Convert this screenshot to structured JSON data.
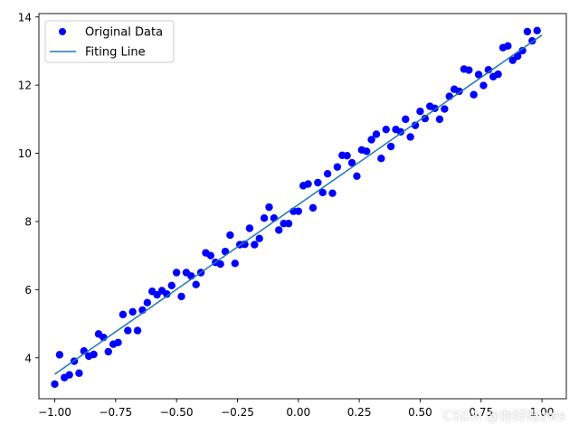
{
  "chart_data": {
    "type": "scatter",
    "title": "",
    "xlabel": "",
    "ylabel": "",
    "xlim": [
      -1.065,
      1.1
    ],
    "ylim": [
      2.8,
      14.1
    ],
    "xticks": [
      -1.0,
      -0.75,
      -0.5,
      -0.25,
      0.0,
      0.25,
      0.5,
      0.75,
      1.0
    ],
    "xtick_labels": [
      "−1.00",
      "−0.75",
      "−0.50",
      "−0.25",
      "0.00",
      "0.25",
      "0.50",
      "0.75",
      "1.00"
    ],
    "yticks": [
      4,
      6,
      8,
      10,
      12,
      14
    ],
    "ytick_labels": [
      "4",
      "6",
      "8",
      "10",
      "12",
      "14"
    ],
    "grid": false,
    "legend_position": "top-left",
    "series": [
      {
        "name": "Original Data",
        "kind": "scatter",
        "color": "#0000ff",
        "points": [
          [
            -1.0,
            3.23
          ],
          [
            -0.98,
            4.09
          ],
          [
            -0.96,
            3.42
          ],
          [
            -0.94,
            3.5
          ],
          [
            -0.92,
            3.9
          ],
          [
            -0.9,
            3.55
          ],
          [
            -0.88,
            4.2
          ],
          [
            -0.86,
            4.05
          ],
          [
            -0.84,
            4.1
          ],
          [
            -0.82,
            4.7
          ],
          [
            -0.8,
            4.6
          ],
          [
            -0.78,
            4.18
          ],
          [
            -0.76,
            4.4
          ],
          [
            -0.74,
            4.45
          ],
          [
            -0.72,
            5.27
          ],
          [
            -0.7,
            4.8
          ],
          [
            -0.68,
            5.35
          ],
          [
            -0.66,
            4.8
          ],
          [
            -0.64,
            5.4
          ],
          [
            -0.62,
            5.62
          ],
          [
            -0.6,
            5.95
          ],
          [
            -0.58,
            5.85
          ],
          [
            -0.56,
            5.97
          ],
          [
            -0.54,
            5.87
          ],
          [
            -0.52,
            6.12
          ],
          [
            -0.5,
            6.5
          ],
          [
            -0.48,
            5.8
          ],
          [
            -0.46,
            6.5
          ],
          [
            -0.44,
            6.4
          ],
          [
            -0.42,
            6.15
          ],
          [
            -0.4,
            6.5
          ],
          [
            -0.38,
            7.08
          ],
          [
            -0.36,
            7.0
          ],
          [
            -0.34,
            6.8
          ],
          [
            -0.32,
            6.75
          ],
          [
            -0.3,
            7.12
          ],
          [
            -0.28,
            7.6
          ],
          [
            -0.26,
            6.77
          ],
          [
            -0.24,
            7.32
          ],
          [
            -0.22,
            7.33
          ],
          [
            -0.2,
            7.8
          ],
          [
            -0.18,
            7.32
          ],
          [
            -0.16,
            7.5
          ],
          [
            -0.14,
            8.1
          ],
          [
            -0.12,
            8.42
          ],
          [
            -0.1,
            8.1
          ],
          [
            -0.08,
            7.75
          ],
          [
            -0.06,
            7.94
          ],
          [
            -0.04,
            7.94
          ],
          [
            -0.02,
            8.3
          ],
          [
            0.0,
            8.3
          ],
          [
            0.02,
            9.05
          ],
          [
            0.04,
            9.1
          ],
          [
            0.06,
            8.4
          ],
          [
            0.08,
            9.14
          ],
          [
            0.1,
            8.85
          ],
          [
            0.12,
            9.4
          ],
          [
            0.14,
            8.83
          ],
          [
            0.16,
            9.6
          ],
          [
            0.18,
            9.94
          ],
          [
            0.2,
            9.93
          ],
          [
            0.22,
            9.72
          ],
          [
            0.24,
            9.33
          ],
          [
            0.26,
            10.1
          ],
          [
            0.28,
            10.06
          ],
          [
            0.3,
            10.4
          ],
          [
            0.32,
            10.56
          ],
          [
            0.34,
            9.85
          ],
          [
            0.36,
            10.7
          ],
          [
            0.38,
            10.2
          ],
          [
            0.4,
            10.7
          ],
          [
            0.42,
            10.63
          ],
          [
            0.44,
            11.0
          ],
          [
            0.46,
            10.48
          ],
          [
            0.48,
            10.82
          ],
          [
            0.5,
            11.23
          ],
          [
            0.52,
            11.02
          ],
          [
            0.54,
            11.38
          ],
          [
            0.56,
            11.32
          ],
          [
            0.58,
            11.0
          ],
          [
            0.6,
            11.3
          ],
          [
            0.62,
            11.67
          ],
          [
            0.64,
            11.88
          ],
          [
            0.66,
            11.82
          ],
          [
            0.68,
            12.47
          ],
          [
            0.7,
            12.44
          ],
          [
            0.72,
            11.72
          ],
          [
            0.74,
            12.31
          ],
          [
            0.76,
            11.99
          ],
          [
            0.78,
            12.45
          ],
          [
            0.8,
            12.25
          ],
          [
            0.82,
            12.32
          ],
          [
            0.84,
            13.1
          ],
          [
            0.86,
            13.15
          ],
          [
            0.88,
            12.73
          ],
          [
            0.9,
            12.85
          ],
          [
            0.92,
            13.01
          ],
          [
            0.94,
            13.57
          ],
          [
            0.96,
            13.3
          ],
          [
            0.98,
            13.6
          ]
        ]
      },
      {
        "name": "Fiting Line",
        "kind": "line",
        "color": "#1f77b4",
        "points": [
          [
            -1.0,
            3.52
          ],
          [
            1.0,
            13.47
          ]
        ]
      }
    ]
  },
  "watermark": "CSDN @你好呀zws"
}
